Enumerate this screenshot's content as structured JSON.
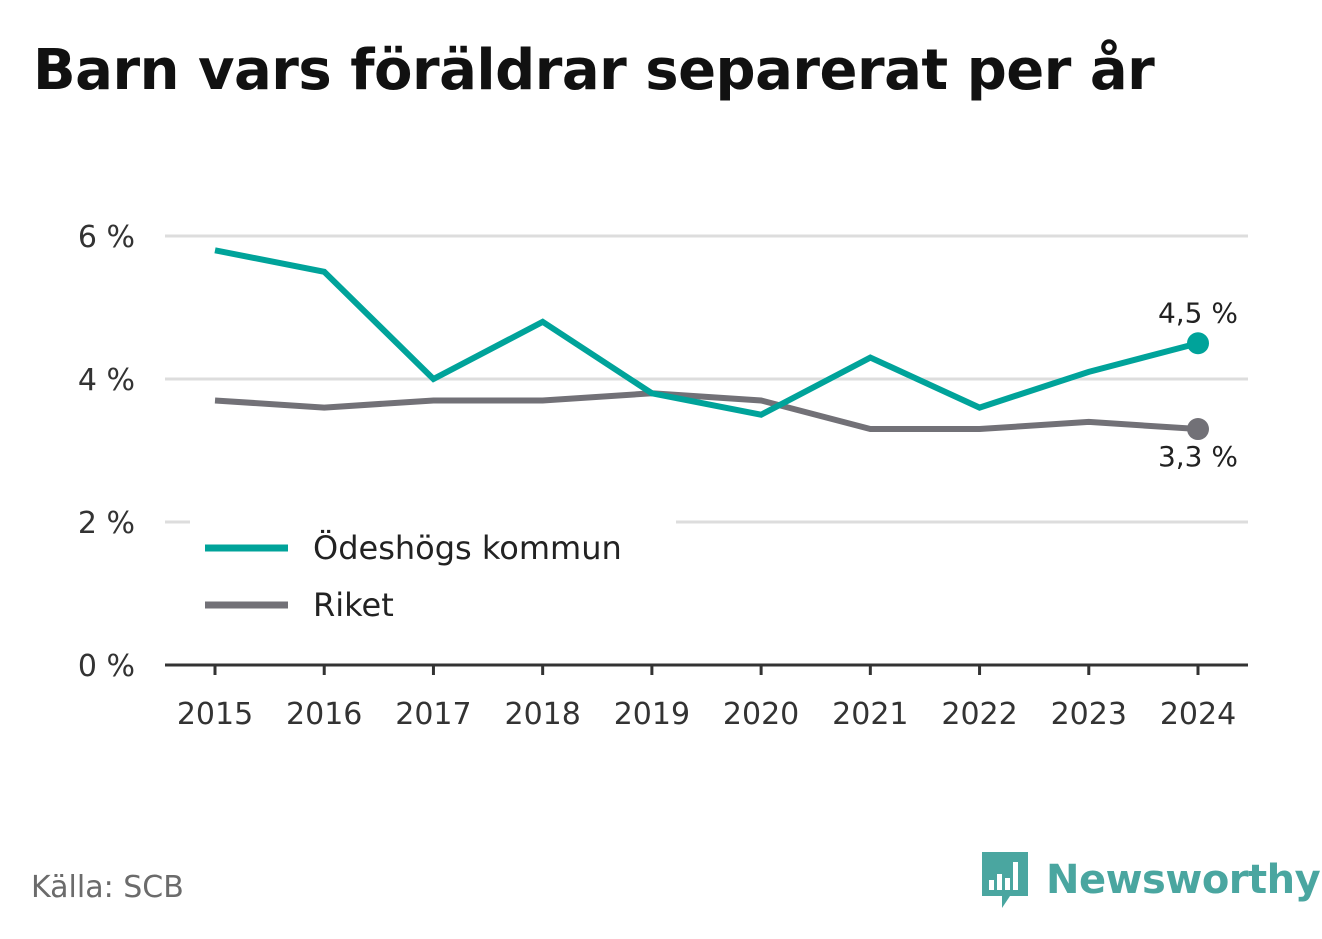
{
  "title": "Barn vars föräldrar separerat per år",
  "source": "Källa: SCB",
  "brand": "Newsworthy",
  "colors": {
    "accent": "#00a39a",
    "gray": "#727177",
    "grid": "#dddddd",
    "axis": "#333333",
    "text": "#333333"
  },
  "chart_data": {
    "type": "line",
    "x": [
      "2015",
      "2016",
      "2017",
      "2018",
      "2019",
      "2020",
      "2021",
      "2022",
      "2023",
      "2024"
    ],
    "ylim": [
      0,
      6
    ],
    "yticks": [
      0,
      2,
      4,
      6
    ],
    "ytick_labels": [
      "0 %",
      "2 %",
      "4 %",
      "6 %"
    ],
    "grid": true,
    "legend": "bottom-left",
    "series": [
      {
        "name": "Ödeshögs kommun",
        "color": "#00a39a",
        "values": [
          5.8,
          5.5,
          4.0,
          4.8,
          3.8,
          3.5,
          4.3,
          3.6,
          4.1,
          4.5
        ],
        "end_label": "4,5 %"
      },
      {
        "name": "Riket",
        "color": "#727177",
        "values": [
          3.7,
          3.6,
          3.7,
          3.7,
          3.8,
          3.7,
          3.3,
          3.3,
          3.4,
          3.3
        ],
        "end_label": "3,3 %"
      }
    ]
  }
}
